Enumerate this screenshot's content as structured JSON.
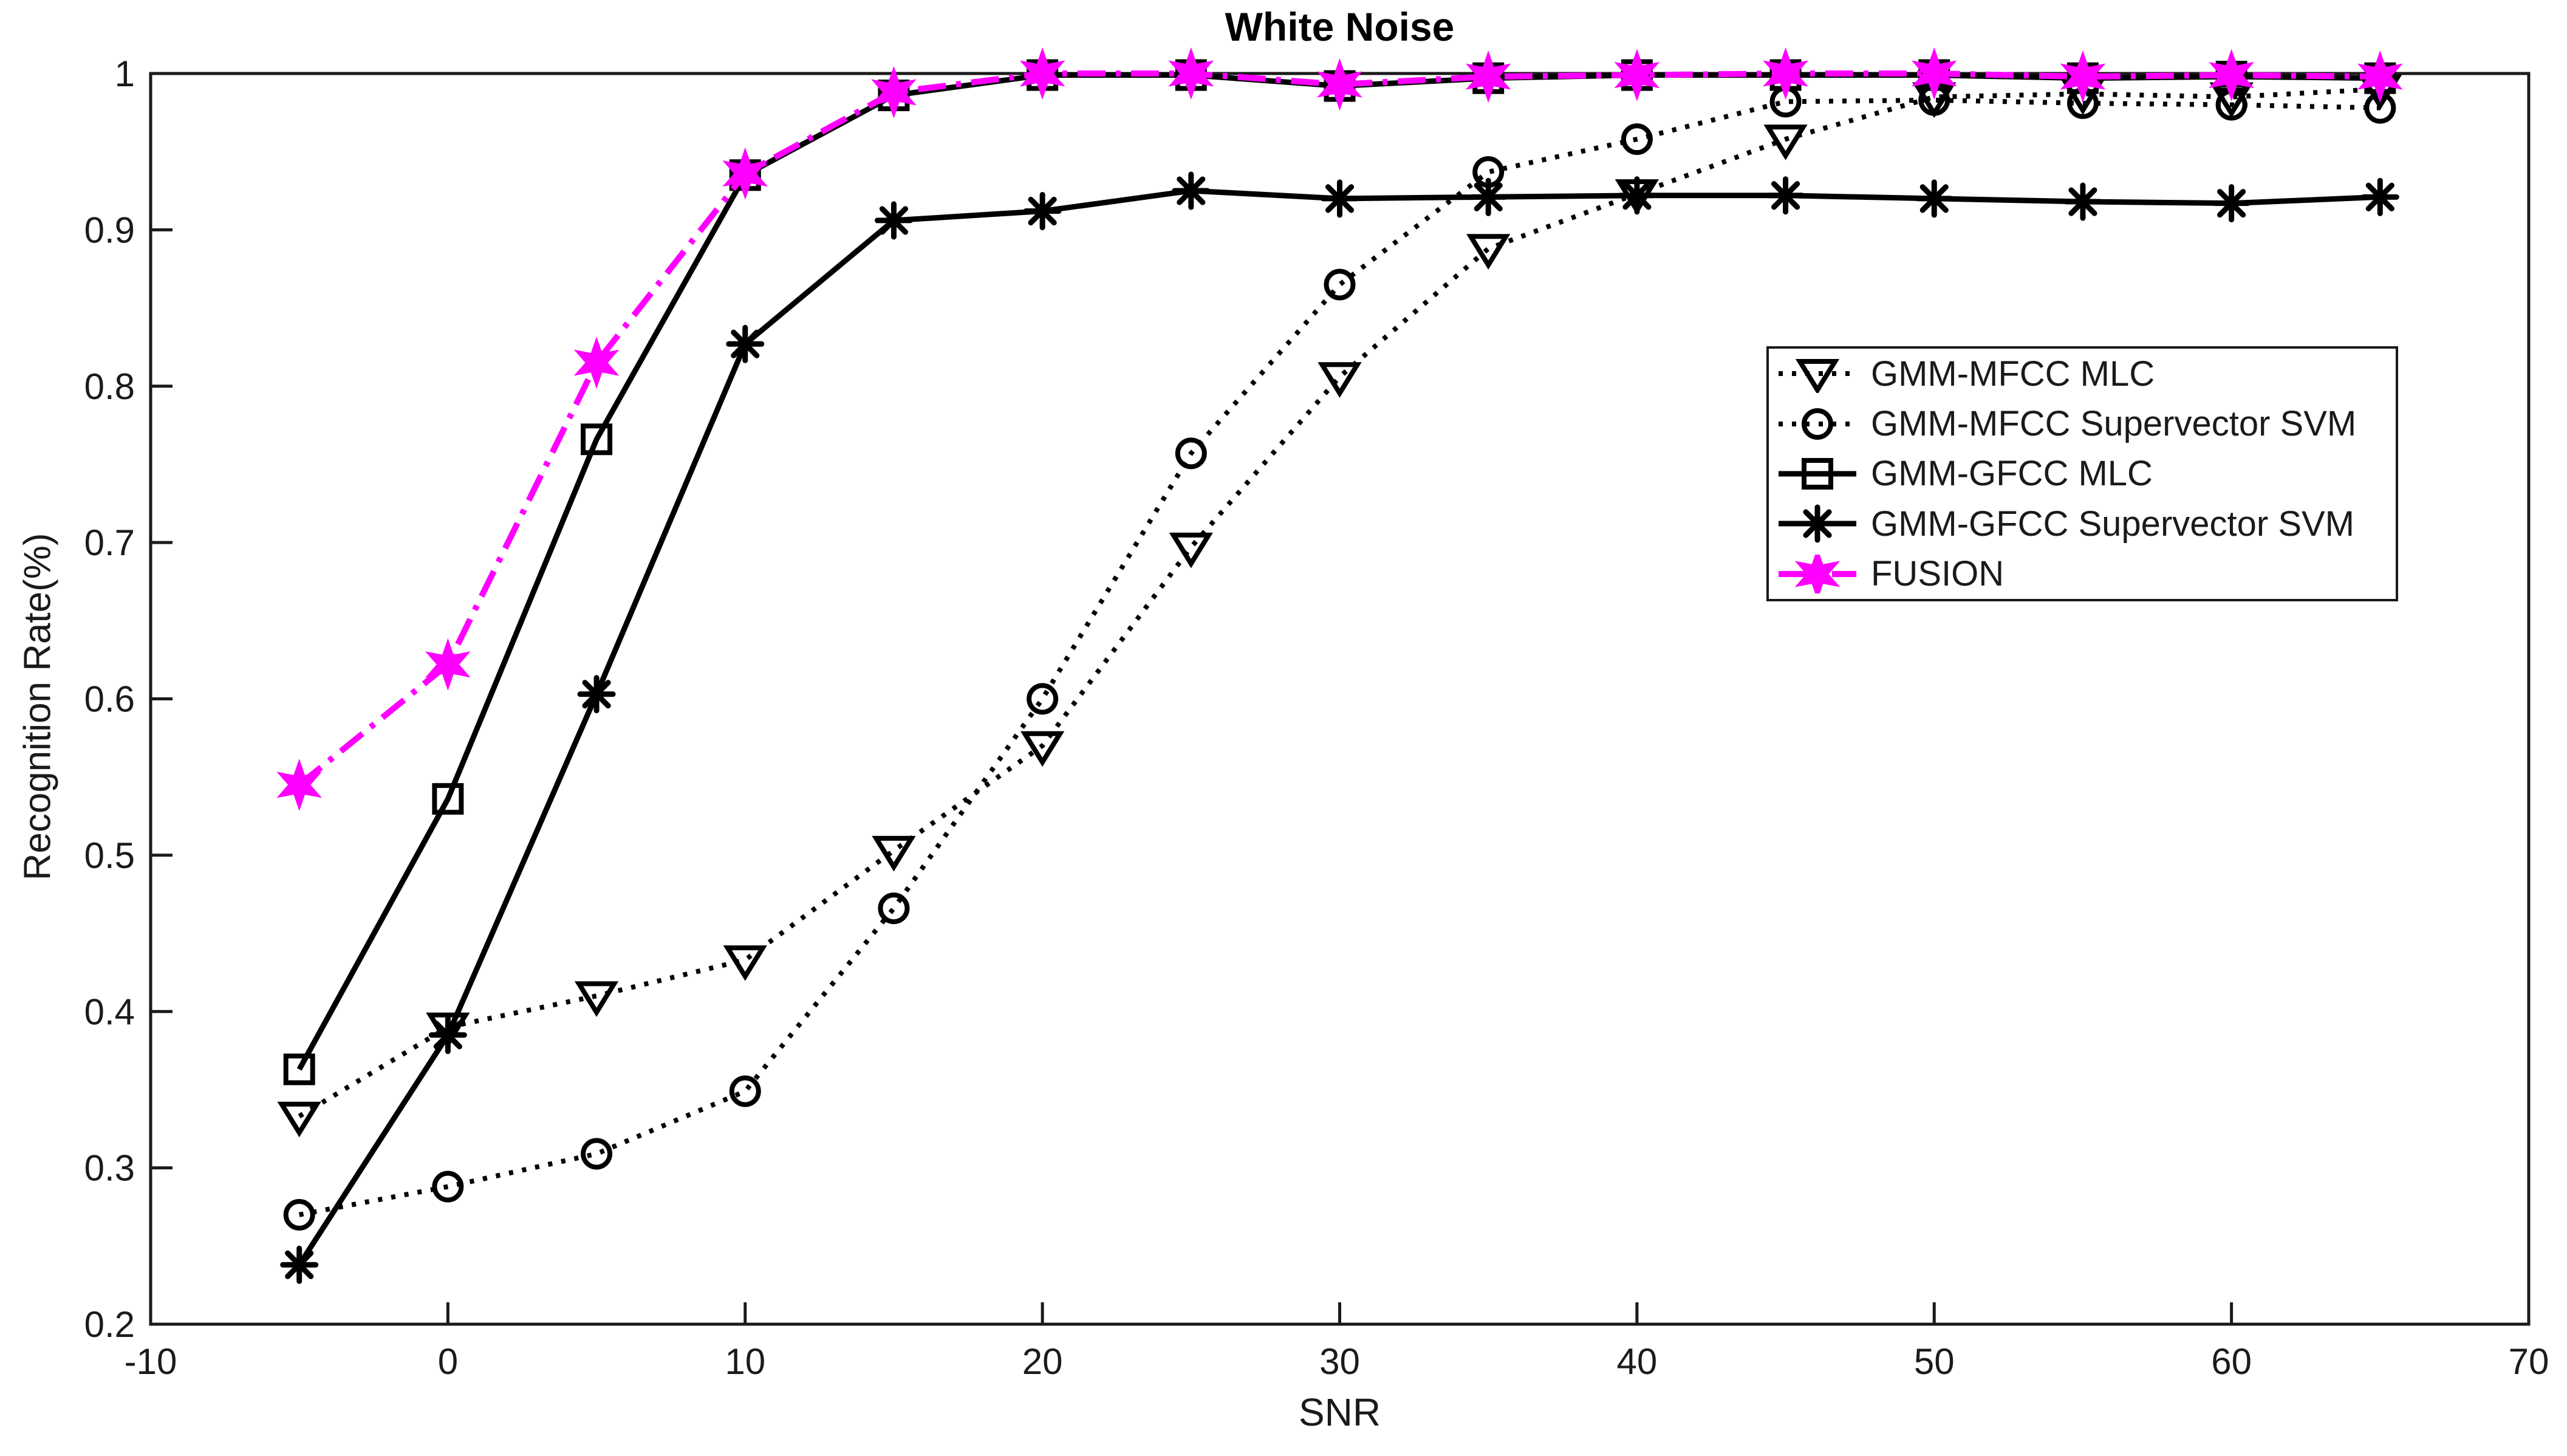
{
  "window": {
    "background_color": "#ffffff"
  },
  "colors": {
    "black": "#000000",
    "magenta": "#FF00FF",
    "axis": "#1a1a1a",
    "background": "#ffffff"
  },
  "chart_data": {
    "type": "line",
    "title": "White Noise",
    "xlabel": "SNR",
    "ylabel": "Recognition Rate(%)",
    "xlim": [
      -10,
      70
    ],
    "ylim": [
      0.2,
      1.0
    ],
    "x_ticks": [
      -10,
      0,
      10,
      20,
      30,
      40,
      50,
      60,
      70
    ],
    "y_ticks": [
      0.2,
      0.3,
      0.4,
      0.5,
      0.6,
      0.7,
      0.8,
      0.9,
      1
    ],
    "grid": false,
    "legend_position": "upper-right-inside",
    "x": [
      -5,
      0,
      5,
      10,
      15,
      20,
      25,
      30,
      35,
      40,
      45,
      50,
      55,
      60,
      65
    ],
    "series": [
      {
        "name": "GMM-MFCC MLC",
        "marker": "triangle-down",
        "line_style": "dotted",
        "color": "#000000",
        "values": [
          0.333,
          0.39,
          0.41,
          0.433,
          0.503,
          0.57,
          0.697,
          0.806,
          0.888,
          0.923,
          0.958,
          0.985,
          0.987,
          0.985,
          0.99
        ]
      },
      {
        "name": "GMM-MFCC Supervector SVM",
        "marker": "circle",
        "line_style": "dotted",
        "color": "#000000",
        "values": [
          0.27,
          0.288,
          0.309,
          0.349,
          0.466,
          0.6,
          0.757,
          0.865,
          0.937,
          0.958,
          0.982,
          0.983,
          0.981,
          0.98,
          0.978
        ]
      },
      {
        "name": "GMM-GFCC MLC",
        "marker": "square",
        "line_style": "solid",
        "color": "#000000",
        "values": [
          0.363,
          0.536,
          0.766,
          0.935,
          0.986,
          0.999,
          0.999,
          0.992,
          0.997,
          0.999,
          0.999,
          0.999,
          0.997,
          0.998,
          0.997
        ]
      },
      {
        "name": "GMM-GFCC Supervector SVM",
        "marker": "asterisk",
        "line_style": "solid",
        "color": "#000000",
        "values": [
          0.238,
          0.385,
          0.603,
          0.827,
          0.906,
          0.912,
          0.925,
          0.92,
          0.921,
          0.922,
          0.922,
          0.92,
          0.918,
          0.917,
          0.921
        ]
      },
      {
        "name": "FUSION",
        "marker": "hexagram",
        "line_style": "dash-dot",
        "color": "#FF00FF",
        "values": [
          0.545,
          0.622,
          0.815,
          0.936,
          0.988,
          1.0,
          1.0,
          0.993,
          0.998,
          0.999,
          1.0,
          1.0,
          0.998,
          0.999,
          0.998
        ]
      }
    ]
  }
}
